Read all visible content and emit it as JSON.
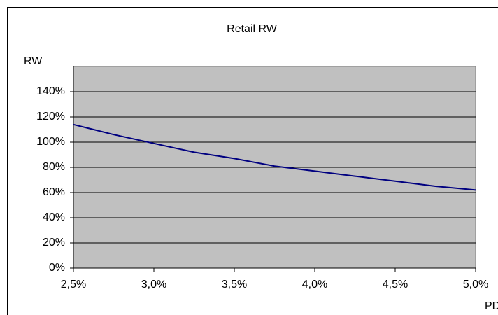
{
  "chart_data": {
    "type": "line",
    "title": "Retail RW",
    "y_label": "RW",
    "x_label": "PD",
    "x": [
      2.5,
      2.75,
      3.0,
      3.25,
      3.5,
      3.75,
      4.0,
      4.25,
      4.5,
      4.75,
      5.0
    ],
    "values": [
      114,
      106,
      99,
      92,
      87,
      81,
      77,
      73,
      69,
      65,
      62
    ],
    "color": "#000080",
    "plot_background": "#c0c0c0",
    "grid": true,
    "xlim": [
      2.5,
      5.0
    ],
    "xticks": [
      {
        "value": 2.5,
        "label": "2,5%"
      },
      {
        "value": 3.0,
        "label": "3,0%"
      },
      {
        "value": 3.5,
        "label": "3,5%"
      },
      {
        "value": 4.0,
        "label": "4,0%"
      },
      {
        "value": 4.5,
        "label": "4,5%"
      },
      {
        "value": 5.0,
        "label": "5,0%"
      }
    ],
    "ylim": [
      0,
      160
    ],
    "yticks": [
      {
        "value": 0,
        "label": "0%"
      },
      {
        "value": 20,
        "label": "20%"
      },
      {
        "value": 40,
        "label": "40%"
      },
      {
        "value": 60,
        "label": "60%"
      },
      {
        "value": 80,
        "label": "80%"
      },
      {
        "value": 100,
        "label": "100%"
      },
      {
        "value": 120,
        "label": "120%"
      },
      {
        "value": 140,
        "label": "140%"
      }
    ]
  }
}
